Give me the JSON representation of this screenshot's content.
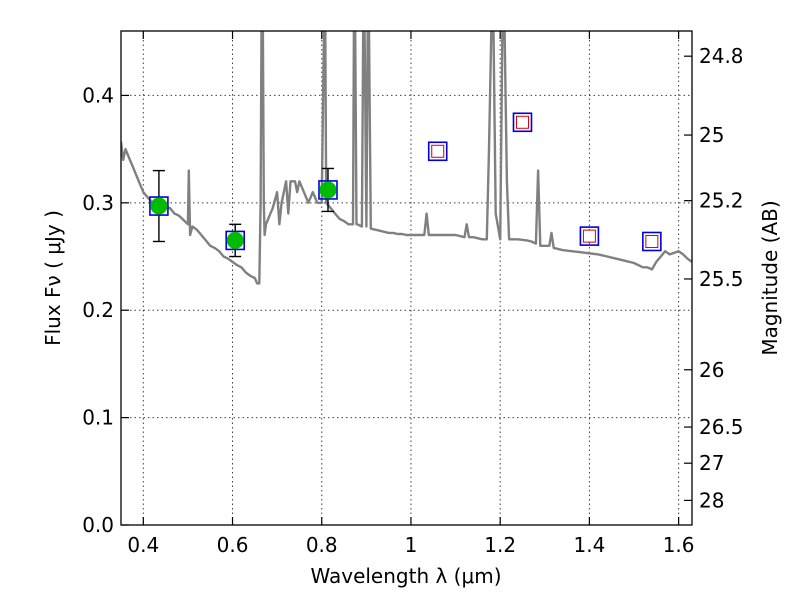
{
  "chart_data": {
    "type": "scatter",
    "xlabel": "Wavelength  λ (μm)",
    "ylabel": "Flux  Fν  ( μJy )",
    "ylabel_right": "Magnitude (AB)",
    "xlim": [
      0.35,
      1.63
    ],
    "ylim": [
      0.0,
      0.46
    ],
    "grid": true,
    "x_ticks": [
      {
        "value": 0.4,
        "label": "0.4"
      },
      {
        "value": 0.6,
        "label": "0.6"
      },
      {
        "value": 0.8,
        "label": "0.8"
      },
      {
        "value": 1.0,
        "label": "1"
      },
      {
        "value": 1.2,
        "label": "1.2"
      },
      {
        "value": 1.4,
        "label": "1.4"
      },
      {
        "value": 1.6,
        "label": "1.6"
      }
    ],
    "y_ticks": [
      {
        "value": 0.0,
        "label": "0.0"
      },
      {
        "value": 0.1,
        "label": "0.1"
      },
      {
        "value": 0.2,
        "label": "0.2"
      },
      {
        "value": 0.3,
        "label": "0.3"
      },
      {
        "value": 0.4,
        "label": "0.4"
      }
    ],
    "mag_ticks": [
      {
        "value": 24.8,
        "label": "24.8"
      },
      {
        "value": 25.0,
        "label": "25"
      },
      {
        "value": 25.2,
        "label": "25.2"
      },
      {
        "value": 25.5,
        "label": "25.5"
      },
      {
        "value": 26.0,
        "label": "26"
      },
      {
        "value": 26.5,
        "label": "26.5"
      },
      {
        "value": 27.0,
        "label": "27"
      },
      {
        "value": 28.0,
        "label": "28"
      }
    ],
    "model_spectrum": {
      "color": "#808080",
      "x": [
        0.35,
        0.355,
        0.36,
        0.365,
        0.37,
        0.375,
        0.38,
        0.39,
        0.4,
        0.41,
        0.42,
        0.43,
        0.44,
        0.45,
        0.46,
        0.47,
        0.48,
        0.49,
        0.5,
        0.502,
        0.505,
        0.508,
        0.51,
        0.52,
        0.53,
        0.54,
        0.55,
        0.56,
        0.57,
        0.58,
        0.59,
        0.6,
        0.61,
        0.62,
        0.63,
        0.64,
        0.65,
        0.655,
        0.66,
        0.663,
        0.665,
        0.668,
        0.67,
        0.672,
        0.675,
        0.68,
        0.685,
        0.69,
        0.7,
        0.705,
        0.71,
        0.72,
        0.725,
        0.73,
        0.74,
        0.745,
        0.75,
        0.76,
        0.77,
        0.78,
        0.79,
        0.8,
        0.805,
        0.808,
        0.81,
        0.82,
        0.83,
        0.84,
        0.85,
        0.86,
        0.87,
        0.872,
        0.875,
        0.878,
        0.88,
        0.89,
        0.893,
        0.896,
        0.9,
        0.903,
        0.906,
        0.91,
        0.92,
        0.93,
        0.94,
        0.95,
        0.96,
        0.97,
        0.98,
        0.99,
        1.0,
        1.01,
        1.02,
        1.03,
        1.035,
        1.04,
        1.05,
        1.06,
        1.08,
        1.1,
        1.12,
        1.125,
        1.13,
        1.14,
        1.16,
        1.17,
        1.175,
        1.18,
        1.185,
        1.19,
        1.2,
        1.205,
        1.21,
        1.215,
        1.22,
        1.24,
        1.26,
        1.27,
        1.28,
        1.285,
        1.29,
        1.3,
        1.31,
        1.315,
        1.32,
        1.34,
        1.36,
        1.38,
        1.4,
        1.42,
        1.44,
        1.46,
        1.48,
        1.5,
        1.52,
        1.53,
        1.54,
        1.55,
        1.56,
        1.57,
        1.58,
        1.6,
        1.61,
        1.62,
        1.63
      ],
      "y": [
        0.357,
        0.34,
        0.35,
        0.345,
        0.34,
        0.335,
        0.33,
        0.32,
        0.31,
        0.305,
        0.3,
        0.298,
        0.297,
        0.296,
        0.295,
        0.29,
        0.288,
        0.284,
        0.28,
        0.33,
        0.27,
        0.275,
        0.278,
        0.275,
        0.27,
        0.265,
        0.26,
        0.258,
        0.255,
        0.25,
        0.248,
        0.245,
        0.242,
        0.24,
        0.235,
        0.232,
        0.23,
        0.225,
        0.225,
        0.3,
        0.46,
        0.46,
        0.3,
        0.27,
        0.28,
        0.285,
        0.29,
        0.295,
        0.31,
        0.28,
        0.3,
        0.32,
        0.29,
        0.32,
        0.32,
        0.31,
        0.32,
        0.31,
        0.3,
        0.31,
        0.3,
        0.3,
        0.46,
        0.46,
        0.3,
        0.295,
        0.29,
        0.285,
        0.283,
        0.28,
        0.28,
        0.46,
        0.46,
        0.28,
        0.28,
        0.278,
        0.46,
        0.46,
        0.278,
        0.46,
        0.46,
        0.276,
        0.275,
        0.274,
        0.273,
        0.272,
        0.272,
        0.271,
        0.271,
        0.27,
        0.27,
        0.27,
        0.27,
        0.27,
        0.29,
        0.27,
        0.27,
        0.27,
        0.27,
        0.27,
        0.268,
        0.28,
        0.268,
        0.268,
        0.266,
        0.266,
        0.35,
        0.46,
        0.46,
        0.29,
        0.266,
        0.46,
        0.46,
        0.32,
        0.266,
        0.266,
        0.265,
        0.264,
        0.262,
        0.33,
        0.26,
        0.26,
        0.26,
        0.272,
        0.258,
        0.256,
        0.255,
        0.254,
        0.253,
        0.252,
        0.25,
        0.248,
        0.246,
        0.244,
        0.24,
        0.24,
        0.238,
        0.245,
        0.25,
        0.255,
        0.252,
        0.255,
        0.252,
        0.248,
        0.245
      ]
    },
    "photometry": [
      {
        "x": 0.435,
        "flux": 0.297,
        "err": 0.033,
        "filled": true
      },
      {
        "x": 0.606,
        "flux": 0.265,
        "err": 0.015,
        "filled": true
      },
      {
        "x": 0.814,
        "flux": 0.312,
        "err": 0.02,
        "filled": true
      },
      {
        "x": 1.06,
        "flux": 0.348,
        "err": null,
        "filled": false
      },
      {
        "x": 1.25,
        "flux": 0.375,
        "err": null,
        "filled": false
      },
      {
        "x": 1.4,
        "flux": 0.269,
        "err": null,
        "filled": false
      },
      {
        "x": 1.54,
        "flux": 0.264,
        "err": null,
        "filled": false
      }
    ],
    "model_fluxes": [
      {
        "x": 0.435,
        "flux": 0.297
      },
      {
        "x": 0.606,
        "flux": 0.265
      },
      {
        "x": 0.814,
        "flux": 0.312
      },
      {
        "x": 1.06,
        "flux": 0.348
      },
      {
        "x": 1.25,
        "flux": 0.375
      },
      {
        "x": 1.4,
        "flux": 0.269
      },
      {
        "x": 1.54,
        "flux": 0.264
      }
    ],
    "colors": {
      "filled_marker": "#00bb00",
      "open_marker": "#dd0000",
      "model_box": "#0000dd",
      "errorbar": "#000000"
    }
  }
}
